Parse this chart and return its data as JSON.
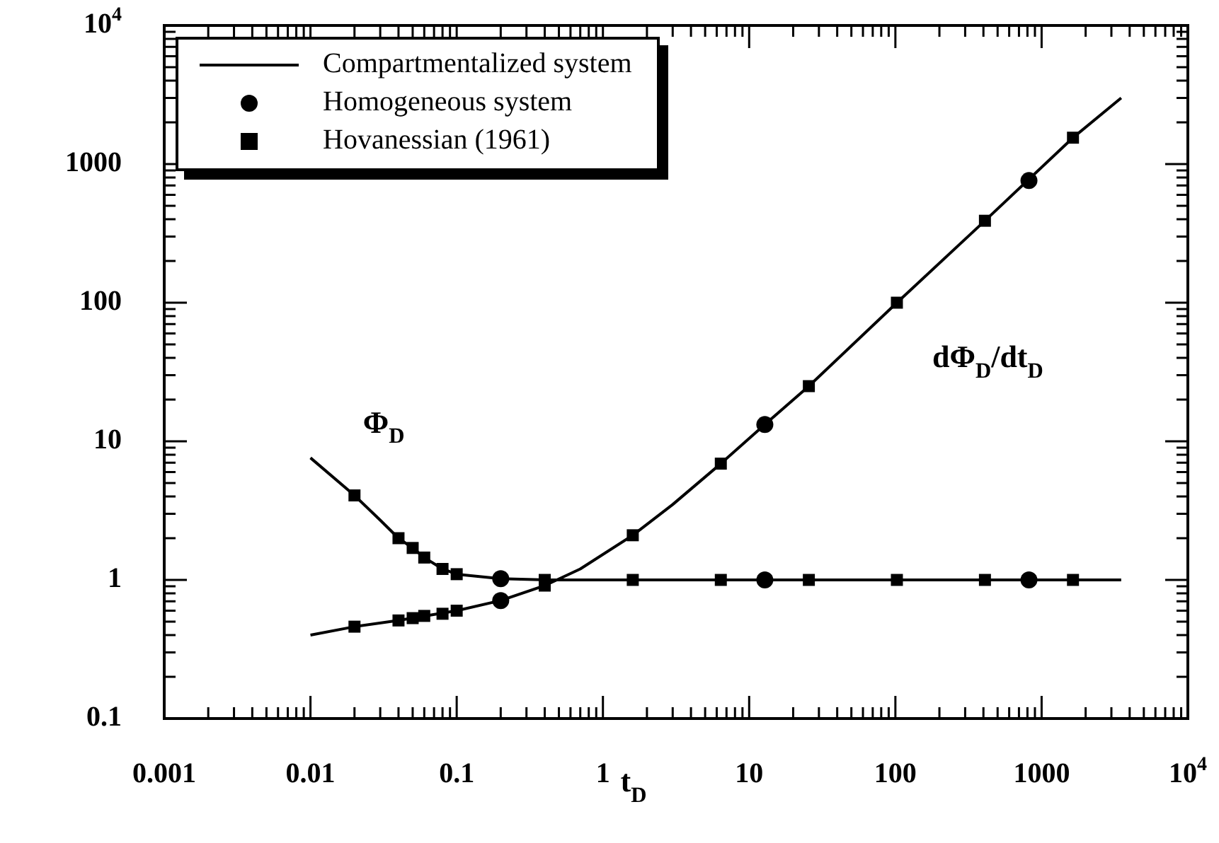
{
  "chart_data": {
    "type": "line",
    "log": "xy",
    "grid": false,
    "legend": "top left",
    "xlabel": "t$_{D}$",
    "xlim": [
      0.001,
      10000
    ],
    "xticks": [
      0.001,
      0.01,
      0.1,
      1,
      10,
      100,
      1000,
      {
        "value": 10000,
        "label": "10$^{4}$"
      }
    ],
    "ylim": [
      0.1,
      10000
    ],
    "yticks": [
      0.1,
      1,
      10,
      100,
      1000,
      {
        "value": 10000,
        "label": "10$^{4}$"
      }
    ],
    "annotations": [
      "Φ$_{D}$",
      "dΦ$_{D}$/dt$_{D}$"
    ],
    "series": [
      {
        "name": "Compartmentalized system",
        "type": "line",
        "marker": "none",
        "line_style": "solid",
        "color": "#000000",
        "x": [
          0.01,
          0.02,
          0.03,
          0.04,
          0.05,
          0.06,
          0.08,
          0.1,
          0.2,
          0.4,
          1.6,
          3500
        ],
        "values": [
          7.6,
          4.07,
          2.7,
          2.0,
          1.7,
          1.45,
          1.2,
          1.1,
          1.02,
          1.0,
          1.0,
          1.0
        ]
      },
      {
        "type": "line",
        "marker": "none",
        "line_style": "solid",
        "color": "#000000",
        "x": [
          0.01,
          0.02,
          0.04,
          0.1,
          0.2,
          0.4,
          0.7,
          1.6,
          3,
          6.4,
          12.8,
          25.6,
          102.4,
          409.6,
          1638.4,
          3500
        ],
        "values": [
          0.4,
          0.46,
          0.51,
          0.6,
          0.71,
          0.91,
          1.2,
          2.1,
          3.5,
          6.9,
          13.2,
          25,
          100,
          390,
          1550,
          3000
        ]
      },
      {
        "name": "Homogeneous system",
        "type": "scatter",
        "marker": "circle",
        "color": "#000000",
        "x": [
          0.2,
          12.8,
          819.2,
          0.2,
          12.8,
          819.2
        ],
        "values": [
          1.02,
          1.0,
          1.0,
          0.71,
          13.2,
          760
        ]
      },
      {
        "name": "Hovanessian (1961)",
        "type": "scatter",
        "marker": "square",
        "color": "#000000",
        "x": [
          0.02,
          0.04,
          0.05,
          0.06,
          0.08,
          0.1,
          0.4,
          1.6,
          6.4,
          25.6,
          102.4,
          409.6,
          1638.4,
          0.02,
          0.04,
          0.05,
          0.06,
          0.08,
          0.1,
          0.4,
          1.6,
          6.4,
          25.6,
          102.4,
          409.6,
          1638.4
        ],
        "values": [
          4.07,
          2.0,
          1.7,
          1.45,
          1.2,
          1.1,
          1.0,
          1.0,
          1.0,
          1.0,
          1.0,
          1.0,
          1.0,
          0.46,
          0.51,
          0.53,
          0.55,
          0.57,
          0.6,
          0.91,
          2.1,
          6.9,
          25,
          100,
          390,
          1550
        ]
      }
    ]
  }
}
